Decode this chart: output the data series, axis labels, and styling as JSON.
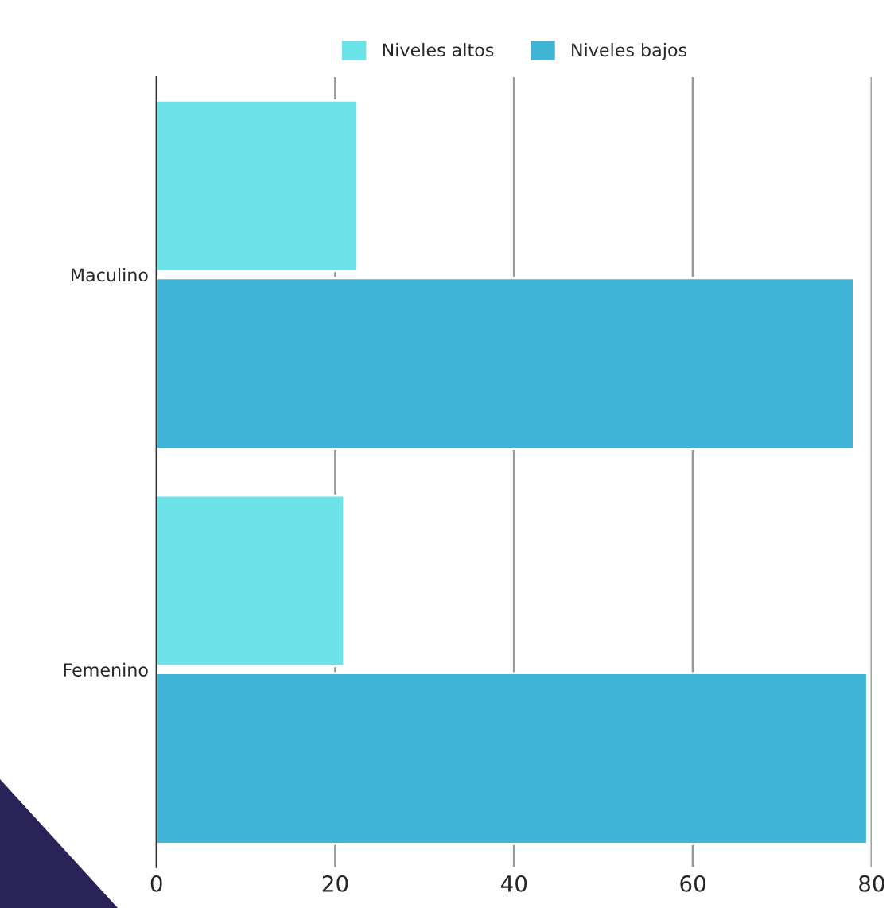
{
  "chart_data": {
    "type": "bar",
    "orientation": "horizontal",
    "categories": [
      "Maculino",
      "Femenino"
    ],
    "series": [
      {
        "name": "Niveles altos",
        "color": "#6ce3e8",
        "values": [
          22.5,
          21
        ]
      },
      {
        "name": "Niveles bajos",
        "color": "#40b4d4",
        "values": [
          78,
          79.5
        ]
      }
    ],
    "xlim": [
      0,
      80
    ],
    "xticks": [
      0,
      20,
      40,
      60,
      80
    ],
    "grid": "x",
    "legend": "top"
  }
}
